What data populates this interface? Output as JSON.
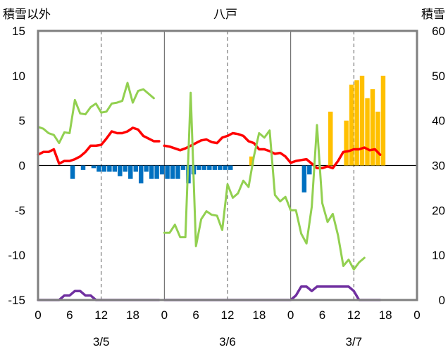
{
  "chart_data": {
    "type": "bar",
    "title": "八戸",
    "left_axis_label": "積雪以外",
    "right_axis_label": "積雪",
    "y_left_range": [
      -15,
      15
    ],
    "y_left_ticks": [
      15,
      10,
      5,
      0,
      -5,
      -10,
      -15
    ],
    "y_right_range": [
      0,
      60
    ],
    "y_right_ticks": [
      60,
      50,
      40,
      30,
      20,
      10,
      0
    ],
    "x_range_hours": [
      0,
      72
    ],
    "x_tick_labels": [
      "0",
      "6",
      "12",
      "18",
      "0",
      "6",
      "12",
      "18",
      "0",
      "6",
      "12",
      "18",
      "0"
    ],
    "day_labels": [
      "3/5",
      "3/6",
      "3/7"
    ],
    "grid": "dashed vertical lines at 12h, solid vertical lines at day boundaries",
    "colors": {
      "frame": "#7f7f7f",
      "zero_line": "#000000",
      "grid": "#595959",
      "blue": "#0070c0",
      "orange": "#ffc000",
      "red": "#ff0000",
      "green": "#92d050",
      "purple": "#7030a0"
    },
    "series": [
      {
        "kind": "bar",
        "axis": "left",
        "color": "#0070c0",
        "points": [
          [
            6,
            -1.5
          ],
          [
            8,
            -0.5
          ],
          [
            10,
            -0.3
          ],
          [
            11,
            -0.7
          ],
          [
            12,
            -0.7
          ],
          [
            13,
            -0.7
          ],
          [
            14,
            -0.7
          ],
          [
            15,
            -1.2
          ],
          [
            16,
            -0.7
          ],
          [
            17,
            -1.5
          ],
          [
            18,
            -0.7
          ],
          [
            19,
            -2
          ],
          [
            20,
            -0.7
          ],
          [
            21,
            -1.5
          ],
          [
            22,
            -1.5
          ],
          [
            23,
            -1
          ],
          [
            24,
            -1.5
          ],
          [
            25,
            -1.5
          ],
          [
            26,
            -1.5
          ],
          [
            27,
            -0.5
          ],
          [
            28,
            -2
          ],
          [
            29,
            -1
          ],
          [
            30,
            -0.5
          ],
          [
            31,
            -0.5
          ],
          [
            32,
            -0.5
          ],
          [
            33,
            -0.5
          ],
          [
            34,
            -0.5
          ],
          [
            35,
            -0.5
          ],
          [
            36,
            -0.5
          ],
          [
            50,
            -3
          ],
          [
            51,
            -1
          ]
        ]
      },
      {
        "kind": "bar",
        "axis": "right",
        "color": "#ffc000",
        "points": [
          [
            40,
            32
          ],
          [
            55,
            42
          ],
          [
            58,
            40
          ],
          [
            59,
            48
          ],
          [
            60,
            49
          ],
          [
            61,
            50
          ],
          [
            62,
            45
          ],
          [
            63,
            47
          ],
          [
            64,
            42
          ],
          [
            65,
            50
          ]
        ]
      },
      {
        "kind": "line",
        "axis": "left",
        "color": "#ff0000",
        "segments": [
          [
            [
              0,
              1.2
            ],
            [
              1,
              1.5
            ],
            [
              2,
              1.5
            ],
            [
              3,
              1.8
            ],
            [
              4,
              0.2
            ],
            [
              5,
              0.5
            ],
            [
              6,
              0.5
            ],
            [
              7,
              0.7
            ],
            [
              8,
              1
            ],
            [
              9,
              1.5
            ],
            [
              10,
              2.2
            ],
            [
              11,
              2.2
            ],
            [
              12,
              2.3
            ],
            [
              13,
              3
            ],
            [
              14,
              3.8
            ],
            [
              15,
              3.6
            ],
            [
              16,
              3.6
            ],
            [
              17,
              3.8
            ],
            [
              18,
              4.2
            ],
            [
              19,
              4
            ],
            [
              20,
              3.3
            ],
            [
              21,
              3
            ],
            [
              22,
              2.7
            ],
            [
              23,
              2.7
            ]
          ],
          [
            [
              24,
              2.2
            ],
            [
              25,
              2.1
            ],
            [
              26,
              1.9
            ],
            [
              27,
              1.7
            ],
            [
              28,
              1.9
            ],
            [
              29,
              2.2
            ],
            [
              30,
              2.5
            ],
            [
              31,
              2.8
            ],
            [
              32,
              2.9
            ],
            [
              33,
              2.6
            ],
            [
              34,
              2.5
            ],
            [
              35,
              3.1
            ],
            [
              36,
              3.3
            ],
            [
              37,
              3.6
            ],
            [
              38,
              3.5
            ],
            [
              39,
              3.3
            ],
            [
              40,
              2.7
            ],
            [
              41,
              2.5
            ],
            [
              42,
              1.8
            ],
            [
              43,
              1.8
            ],
            [
              44,
              1.6
            ],
            [
              45,
              1.3
            ],
            [
              46,
              1.4
            ],
            [
              47,
              1
            ],
            [
              48,
              0.3
            ],
            [
              49,
              0.5
            ],
            [
              50,
              0.6
            ],
            [
              51,
              0.7
            ],
            [
              52,
              0.2
            ],
            [
              53,
              -0.3
            ],
            [
              54,
              -0.3
            ],
            [
              55,
              -0.1
            ],
            [
              56,
              -0.3
            ],
            [
              57,
              0.5
            ],
            [
              58,
              1.5
            ],
            [
              59,
              1.6
            ],
            [
              60,
              1.8
            ],
            [
              61,
              1.8
            ],
            [
              62,
              2
            ],
            [
              63,
              1.7
            ],
            [
              64,
              1.8
            ],
            [
              65,
              1.2
            ]
          ]
        ]
      },
      {
        "kind": "line",
        "axis": "left",
        "color": "#92d050",
        "segments": [
          [
            [
              0,
              4.3
            ],
            [
              1,
              4.1
            ],
            [
              2,
              3.6
            ],
            [
              3,
              3.4
            ],
            [
              4,
              2.5
            ],
            [
              5,
              3.7
            ],
            [
              6,
              3.6
            ],
            [
              7,
              7.3
            ],
            [
              8,
              5.8
            ],
            [
              9,
              5.7
            ],
            [
              10,
              6.5
            ],
            [
              11,
              6.9
            ],
            [
              12,
              5.9
            ],
            [
              13,
              6
            ],
            [
              14,
              6.9
            ],
            [
              15,
              7
            ],
            [
              16,
              7.2
            ],
            [
              17,
              9.2
            ],
            [
              18,
              7
            ],
            [
              19,
              8.3
            ],
            [
              20,
              8.5
            ],
            [
              21,
              8
            ],
            [
              22,
              7.5
            ]
          ],
          [
            [
              24,
              -7.5
            ],
            [
              25,
              -7.5
            ],
            [
              26,
              -6.6
            ],
            [
              27,
              -8
            ],
            [
              28,
              -8
            ],
            [
              29,
              8.1
            ],
            [
              30,
              -9
            ],
            [
              31,
              -6
            ],
            [
              32,
              -5.1
            ],
            [
              33,
              -5.5
            ],
            [
              34,
              -5.6
            ],
            [
              35,
              -7.2
            ],
            [
              36,
              -2.1
            ],
            [
              37,
              -3.6
            ],
            [
              38,
              -3.1
            ],
            [
              39,
              -1.7
            ],
            [
              40,
              -2.4
            ],
            [
              41,
              1
            ],
            [
              42,
              3.6
            ],
            [
              43,
              3.1
            ],
            [
              44,
              3.9
            ],
            [
              45,
              -3.3
            ],
            [
              46,
              -4
            ],
            [
              47,
              -3.5
            ],
            [
              48,
              -5
            ],
            [
              49,
              -5
            ],
            [
              50,
              -7.6
            ],
            [
              51,
              -8.7
            ],
            [
              52,
              -4.6
            ],
            [
              53,
              4.5
            ],
            [
              54,
              -4.2
            ],
            [
              55,
              -6.3
            ],
            [
              56,
              -5.4
            ],
            [
              57,
              -7.8
            ],
            [
              58,
              -11.2
            ],
            [
              59,
              -10.5
            ],
            [
              60,
              -11.6
            ],
            [
              61,
              -10.8
            ],
            [
              62,
              -10.3
            ]
          ]
        ]
      },
      {
        "kind": "line",
        "axis": "right",
        "color": "#7030a0",
        "segments": [
          [
            [
              0,
              0
            ],
            [
              1,
              0
            ],
            [
              2,
              0
            ],
            [
              3,
              0
            ],
            [
              4,
              0
            ],
            [
              5,
              1
            ],
            [
              6,
              1
            ],
            [
              7,
              2
            ],
            [
              8,
              2
            ],
            [
              9,
              1
            ],
            [
              10,
              1
            ],
            [
              11,
              0
            ],
            [
              12,
              0
            ],
            [
              13,
              0
            ],
            [
              14,
              0
            ],
            [
              15,
              0
            ],
            [
              16,
              0
            ],
            [
              17,
              0
            ],
            [
              18,
              0
            ],
            [
              19,
              0
            ],
            [
              20,
              0
            ],
            [
              21,
              0
            ],
            [
              22,
              0
            ],
            [
              23,
              0
            ]
          ],
          [
            [
              24,
              0
            ],
            [
              25,
              0
            ],
            [
              26,
              0
            ],
            [
              27,
              0
            ],
            [
              28,
              0
            ],
            [
              29,
              0
            ],
            [
              30,
              0
            ],
            [
              31,
              0
            ],
            [
              32,
              0
            ],
            [
              33,
              0
            ],
            [
              34,
              0
            ],
            [
              35,
              0
            ],
            [
              36,
              0
            ],
            [
              37,
              0
            ],
            [
              38,
              0
            ],
            [
              39,
              0
            ],
            [
              40,
              0
            ],
            [
              41,
              0
            ],
            [
              42,
              0
            ],
            [
              43,
              0
            ],
            [
              44,
              0
            ],
            [
              45,
              0
            ],
            [
              46,
              0
            ],
            [
              47,
              0
            ],
            [
              48,
              0
            ],
            [
              49,
              1
            ],
            [
              50,
              3
            ],
            [
              51,
              3
            ],
            [
              52,
              2
            ],
            [
              53,
              3
            ],
            [
              54,
              3
            ],
            [
              55,
              3
            ],
            [
              56,
              3
            ],
            [
              57,
              3
            ],
            [
              58,
              3
            ],
            [
              59,
              3
            ],
            [
              60,
              2
            ],
            [
              61,
              0
            ],
            [
              62,
              0
            ],
            [
              63,
              0
            ],
            [
              64,
              0
            ],
            [
              65,
              0
            ]
          ]
        ]
      }
    ]
  }
}
